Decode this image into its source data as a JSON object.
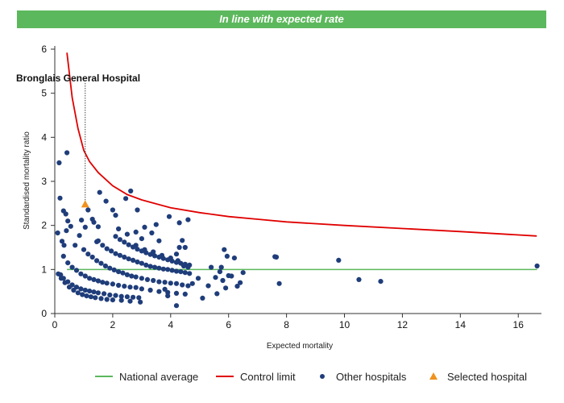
{
  "banner": {
    "text": "In line with expected rate",
    "color": "#5cb85c"
  },
  "colors": {
    "national_average": "#5cb85c",
    "control_limit": "#e00000",
    "other_hospitals": "#1f3d7a",
    "selected_hospital": "#f0921e"
  },
  "chart_data": {
    "type": "scatter",
    "xlabel": "Expected mortality",
    "ylabel": "Standardised mortality ratio",
    "xlim": [
      0,
      16.8
    ],
    "ylim": [
      0,
      6
    ],
    "x_ticks": [
      0,
      2,
      4,
      6,
      8,
      10,
      12,
      14,
      16
    ],
    "y_ticks": [
      0,
      1,
      2,
      3,
      4,
      5,
      6
    ],
    "grid": false,
    "legend_position": "bottom",
    "highlight_label": "Bronglais General Hospital",
    "legend": [
      "National average",
      "Control limit",
      "Other hospitals",
      "Selected hospital"
    ],
    "national_average": 1,
    "control_limit": [
      [
        0.42,
        5.92
      ],
      [
        0.6,
        4.9
      ],
      [
        0.8,
        4.2
      ],
      [
        1.0,
        3.7
      ],
      [
        1.2,
        3.45
      ],
      [
        1.5,
        3.2
      ],
      [
        2.0,
        2.9
      ],
      [
        2.5,
        2.7
      ],
      [
        3.0,
        2.58
      ],
      [
        4.0,
        2.4
      ],
      [
        5.0,
        2.29
      ],
      [
        6.0,
        2.2
      ],
      [
        7.0,
        2.14
      ],
      [
        8.0,
        2.08
      ],
      [
        10.0,
        2.0
      ],
      [
        12.0,
        1.93
      ],
      [
        14.0,
        1.86
      ],
      [
        16.64,
        1.76
      ]
    ],
    "selected_hospital": {
      "x": 1.05,
      "y": 2.48
    },
    "other_hospitals": [
      [
        0.15,
        3.42
      ],
      [
        0.42,
        3.65
      ],
      [
        0.18,
        2.62
      ],
      [
        0.3,
        2.33
      ],
      [
        0.38,
        2.26
      ],
      [
        0.45,
        2.1
      ],
      [
        0.55,
        1.98
      ],
      [
        0.4,
        1.88
      ],
      [
        0.1,
        1.83
      ],
      [
        0.25,
        1.64
      ],
      [
        0.32,
        1.55
      ],
      [
        0.7,
        1.55
      ],
      [
        0.85,
        1.77
      ],
      [
        0.92,
        2.12
      ],
      [
        1.05,
        1.96
      ],
      [
        1.15,
        2.35
      ],
      [
        1.3,
        2.14
      ],
      [
        1.35,
        2.07
      ],
      [
        1.5,
        1.97
      ],
      [
        1.45,
        1.63
      ],
      [
        1.55,
        2.75
      ],
      [
        1.77,
        2.55
      ],
      [
        2.0,
        2.35
      ],
      [
        2.1,
        2.23
      ],
      [
        2.45,
        2.61
      ],
      [
        2.62,
        2.78
      ],
      [
        2.85,
        2.35
      ],
      [
        3.1,
        1.96
      ],
      [
        3.35,
        1.83
      ],
      [
        3.5,
        2.02
      ],
      [
        3.95,
        2.2
      ],
      [
        4.3,
        2.06
      ],
      [
        4.6,
        2.13
      ],
      [
        4.4,
        1.66
      ],
      [
        4.3,
        1.5
      ],
      [
        4.2,
        1.35
      ],
      [
        2.2,
        1.92
      ],
      [
        2.5,
        1.8
      ],
      [
        2.8,
        1.85
      ],
      [
        3.0,
        1.7
      ],
      [
        3.6,
        1.65
      ],
      [
        4.5,
        1.5
      ],
      [
        5.85,
        1.45
      ],
      [
        5.95,
        1.3
      ],
      [
        6.2,
        1.26
      ],
      [
        7.6,
        1.29
      ],
      [
        7.65,
        1.28
      ],
      [
        9.8,
        1.21
      ],
      [
        16.65,
        1.08
      ],
      [
        7.75,
        0.68
      ],
      [
        10.5,
        0.77
      ],
      [
        11.25,
        0.73
      ],
      [
        6.5,
        0.93
      ],
      [
        6.1,
        0.85
      ],
      [
        5.4,
        1.05
      ],
      [
        5.3,
        0.63
      ],
      [
        5.55,
        0.82
      ],
      [
        5.75,
        1.05
      ],
      [
        4.75,
        0.68
      ],
      [
        4.2,
        0.18
      ],
      [
        5.1,
        0.35
      ],
      [
        5.6,
        0.45
      ],
      [
        3.8,
        0.55
      ],
      [
        3.9,
        0.4
      ],
      [
        5.9,
        0.58
      ],
      [
        6.3,
        0.62
      ],
      [
        6.0,
        0.86
      ],
      [
        5.7,
        0.95
      ],
      [
        4.95,
        0.8
      ],
      [
        5.8,
        0.75
      ],
      [
        6.4,
        0.7
      ],
      [
        0.12,
        0.9
      ],
      [
        0.22,
        0.8
      ],
      [
        0.35,
        0.7
      ],
      [
        0.5,
        0.6
      ],
      [
        0.65,
        0.53
      ],
      [
        0.8,
        0.47
      ],
      [
        0.95,
        0.43
      ],
      [
        1.1,
        0.4
      ],
      [
        1.25,
        0.38
      ],
      [
        1.4,
        0.36
      ],
      [
        1.6,
        0.34
      ],
      [
        1.8,
        0.32
      ],
      [
        2.0,
        0.31
      ],
      [
        2.3,
        0.3
      ],
      [
        2.6,
        0.28
      ],
      [
        2.95,
        0.26
      ],
      [
        0.2,
        0.88
      ],
      [
        0.3,
        0.8
      ],
      [
        0.45,
        0.72
      ],
      [
        0.6,
        0.65
      ],
      [
        0.75,
        0.6
      ],
      [
        0.9,
        0.56
      ],
      [
        1.05,
        0.53
      ],
      [
        1.2,
        0.51
      ],
      [
        1.35,
        0.49
      ],
      [
        1.5,
        0.47
      ],
      [
        1.7,
        0.45
      ],
      [
        1.9,
        0.42
      ],
      [
        2.1,
        0.41
      ],
      [
        2.3,
        0.39
      ],
      [
        2.5,
        0.38
      ],
      [
        2.7,
        0.37
      ],
      [
        2.9,
        0.36
      ],
      [
        0.3,
        1.3
      ],
      [
        0.45,
        1.15
      ],
      [
        0.6,
        1.05
      ],
      [
        0.75,
        0.98
      ],
      [
        0.9,
        0.9
      ],
      [
        1.05,
        0.85
      ],
      [
        1.2,
        0.8
      ],
      [
        1.35,
        0.77
      ],
      [
        1.5,
        0.74
      ],
      [
        1.65,
        0.71
      ],
      [
        1.8,
        0.69
      ],
      [
        2.0,
        0.67
      ],
      [
        2.2,
        0.64
      ],
      [
        2.4,
        0.62
      ],
      [
        2.6,
        0.6
      ],
      [
        2.8,
        0.59
      ],
      [
        3.0,
        0.56
      ],
      [
        3.3,
        0.53
      ],
      [
        3.6,
        0.5
      ],
      [
        3.9,
        0.48
      ],
      [
        4.2,
        0.46
      ],
      [
        4.5,
        0.44
      ],
      [
        1.0,
        1.45
      ],
      [
        1.15,
        1.35
      ],
      [
        1.3,
        1.28
      ],
      [
        1.45,
        1.2
      ],
      [
        1.6,
        1.14
      ],
      [
        1.75,
        1.08
      ],
      [
        1.9,
        1.03
      ],
      [
        2.05,
        0.99
      ],
      [
        2.2,
        0.95
      ],
      [
        2.35,
        0.92
      ],
      [
        2.5,
        0.88
      ],
      [
        2.65,
        0.85
      ],
      [
        2.8,
        0.83
      ],
      [
        3.0,
        0.8
      ],
      [
        3.2,
        0.77
      ],
      [
        3.4,
        0.75
      ],
      [
        3.6,
        0.72
      ],
      [
        3.8,
        0.71
      ],
      [
        4.0,
        0.69
      ],
      [
        4.2,
        0.68
      ],
      [
        4.4,
        0.65
      ],
      [
        4.6,
        0.63
      ],
      [
        1.5,
        1.65
      ],
      [
        1.65,
        1.55
      ],
      [
        1.8,
        1.47
      ],
      [
        1.95,
        1.42
      ],
      [
        2.1,
        1.36
      ],
      [
        2.25,
        1.32
      ],
      [
        2.4,
        1.28
      ],
      [
        2.55,
        1.24
      ],
      [
        2.7,
        1.21
      ],
      [
        2.85,
        1.17
      ],
      [
        3.0,
        1.14
      ],
      [
        3.15,
        1.1
      ],
      [
        3.3,
        1.07
      ],
      [
        3.45,
        1.05
      ],
      [
        3.6,
        1.03
      ],
      [
        3.75,
        1.01
      ],
      [
        3.9,
        1.0
      ],
      [
        4.05,
        0.98
      ],
      [
        4.2,
        0.96
      ],
      [
        4.35,
        0.95
      ],
      [
        4.5,
        0.93
      ],
      [
        4.65,
        0.91
      ],
      [
        2.1,
        1.75
      ],
      [
        2.25,
        1.68
      ],
      [
        2.4,
        1.62
      ],
      [
        2.55,
        1.56
      ],
      [
        2.7,
        1.51
      ],
      [
        2.85,
        1.46
      ],
      [
        3.0,
        1.42
      ],
      [
        3.15,
        1.38
      ],
      [
        3.3,
        1.34
      ],
      [
        3.45,
        1.31
      ],
      [
        3.6,
        1.28
      ],
      [
        3.75,
        1.25
      ],
      [
        3.9,
        1.22
      ],
      [
        4.05,
        1.19
      ],
      [
        4.2,
        1.16
      ],
      [
        4.35,
        1.14
      ],
      [
        4.5,
        1.12
      ],
      [
        4.65,
        1.1
      ],
      [
        2.8,
        1.55
      ],
      [
        3.1,
        1.45
      ],
      [
        3.4,
        1.4
      ],
      [
        3.7,
        1.32
      ],
      [
        4.0,
        1.26
      ],
      [
        4.25,
        1.2
      ],
      [
        4.45,
        1.08
      ],
      [
        4.6,
        1.05
      ]
    ]
  }
}
